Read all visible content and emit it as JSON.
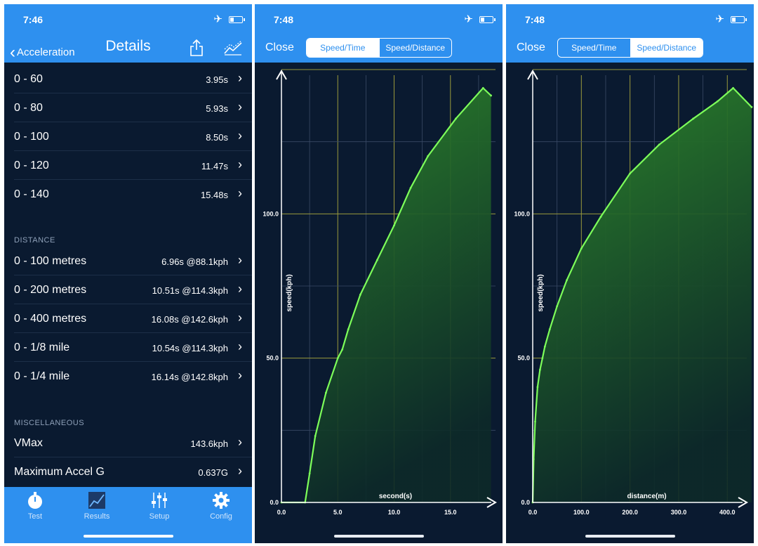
{
  "colors": {
    "accent": "#2e90ef",
    "background": "#0a1a30",
    "curve": "#7dff5a",
    "grid": "#9a9a3c"
  },
  "panel1": {
    "status_time": "7:46",
    "nav": {
      "back_label": "Acceleration",
      "title": "Details"
    },
    "speed_rows": [
      {
        "label": "0 - 60",
        "value": "3.95s"
      },
      {
        "label": "0 - 80",
        "value": "5.93s"
      },
      {
        "label": "0 - 100",
        "value": "8.50s"
      },
      {
        "label": "0 - 120",
        "value": "11.47s"
      },
      {
        "label": "0 - 140",
        "value": "15.48s"
      }
    ],
    "distance_header": "DISTANCE",
    "distance_rows": [
      {
        "label": "0 - 100 metres",
        "value": "6.96s @88.1kph"
      },
      {
        "label": "0 - 200 metres",
        "value": "10.51s @114.3kph"
      },
      {
        "label": "0 - 400 metres",
        "value": "16.08s @142.6kph"
      },
      {
        "label": "0 - 1/8 mile",
        "value": "10.54s @114.3kph"
      },
      {
        "label": "0 - 1/4 mile",
        "value": "16.14s @142.8kph"
      }
    ],
    "misc_header": "MISCELLANEOUS",
    "misc_rows": [
      {
        "label": "VMax",
        "value": "143.6kph"
      },
      {
        "label": "Maximum Accel G",
        "value": "0.637G"
      }
    ],
    "tabs": [
      {
        "label": "Test",
        "icon": "stopwatch-icon"
      },
      {
        "label": "Results",
        "icon": "chart-icon"
      },
      {
        "label": "Setup",
        "icon": "sliders-icon"
      },
      {
        "label": "Config",
        "icon": "gear-icon"
      }
    ]
  },
  "panel2": {
    "status_time": "7:48",
    "close_label": "Close",
    "seg_left": "Speed/Time",
    "seg_right": "Speed/Distance",
    "selected": "Speed/Time"
  },
  "panel3": {
    "status_time": "7:48",
    "close_label": "Close",
    "seg_left": "Speed/Time",
    "seg_right": "Speed/Distance",
    "selected": "Speed/Distance"
  },
  "chart_data": [
    {
      "type": "area",
      "xlabel": "second(s)",
      "ylabel": "speed(kph)",
      "xlim": [
        0,
        19
      ],
      "ylim": [
        0,
        150
      ],
      "x_ticks": [
        "0.0",
        "5.0",
        "10.0",
        "15.0"
      ],
      "y_ticks": [
        "0.0",
        "50.0",
        "100.0"
      ],
      "x": [
        0,
        2.1,
        2.5,
        3.0,
        3.95,
        5.0,
        5.4,
        5.93,
        7.0,
        8.5,
        10.0,
        11.47,
        13.0,
        15.48,
        17.9,
        18.6
      ],
      "values": [
        0,
        0,
        10,
        23,
        38,
        50,
        53,
        60,
        72,
        84,
        96,
        109,
        120,
        133,
        143.6,
        141
      ],
      "grid": true
    },
    {
      "type": "area",
      "xlabel": "distance(m)",
      "ylabel": "speed(kph)",
      "xlim": [
        0,
        440
      ],
      "ylim": [
        0,
        150
      ],
      "x_ticks": [
        "0.0",
        "100.0",
        "200.0",
        "300.0",
        "400.0"
      ],
      "y_ticks": [
        "0.0",
        "50.0",
        "100.0"
      ],
      "x": [
        0,
        2,
        5,
        10,
        15,
        20,
        25,
        35,
        50,
        70,
        100,
        140,
        200,
        260,
        330,
        380,
        412,
        450
      ],
      "values": [
        0,
        15,
        28,
        40,
        46,
        50,
        54,
        60,
        68,
        77,
        88,
        99,
        114,
        124,
        133,
        139,
        143.6,
        137
      ],
      "grid": true
    }
  ]
}
